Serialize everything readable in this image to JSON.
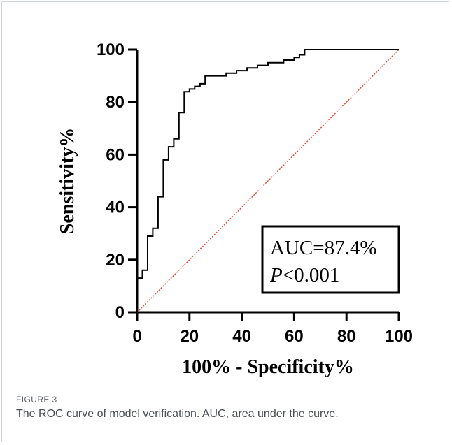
{
  "figure": {
    "label": "FIGURE 3",
    "caption": "The ROC curve of model verification. AUC, area under the curve."
  },
  "chart_data": {
    "type": "line",
    "title": "",
    "xlabel": "100% - Specificity%",
    "ylabel": "Sensitivity%",
    "xlim": [
      0,
      100
    ],
    "ylim": [
      0,
      100
    ],
    "x_ticks": [
      "0",
      "20",
      "40",
      "60",
      "80",
      "100"
    ],
    "y_ticks": [
      "0",
      "20",
      "40",
      "60",
      "80",
      "100"
    ],
    "grid": false,
    "annotation": {
      "line1": "AUC=87.4%",
      "p_symbol": "P",
      "p_rest": "<0.001",
      "placement": "bottom-right"
    },
    "reference_line": {
      "x": [
        0,
        100
      ],
      "y": [
        0,
        100
      ],
      "color": "#e8452c",
      "style": "dotted"
    },
    "series": [
      {
        "color": "#000000",
        "x": [
          0,
          0,
          2,
          2,
          4,
          4,
          6,
          6,
          8,
          8,
          10,
          10,
          12,
          12,
          14,
          14,
          16,
          16,
          18,
          18,
          20,
          20,
          22,
          22,
          24,
          24,
          26,
          26,
          34,
          34,
          38,
          38,
          42,
          42,
          46,
          46,
          50,
          50,
          56,
          56,
          60,
          60,
          62,
          62,
          64,
          64,
          100
        ],
        "y": [
          0,
          13,
          13,
          16,
          16,
          29,
          29,
          32,
          32,
          44,
          44,
          58,
          58,
          63,
          63,
          66,
          66,
          76,
          76,
          84,
          84,
          85,
          85,
          86,
          86,
          87,
          87,
          90,
          90,
          91,
          91,
          92,
          92,
          93,
          93,
          94,
          94,
          95,
          95,
          96,
          96,
          97,
          97,
          98,
          98,
          100,
          100
        ]
      }
    ]
  }
}
